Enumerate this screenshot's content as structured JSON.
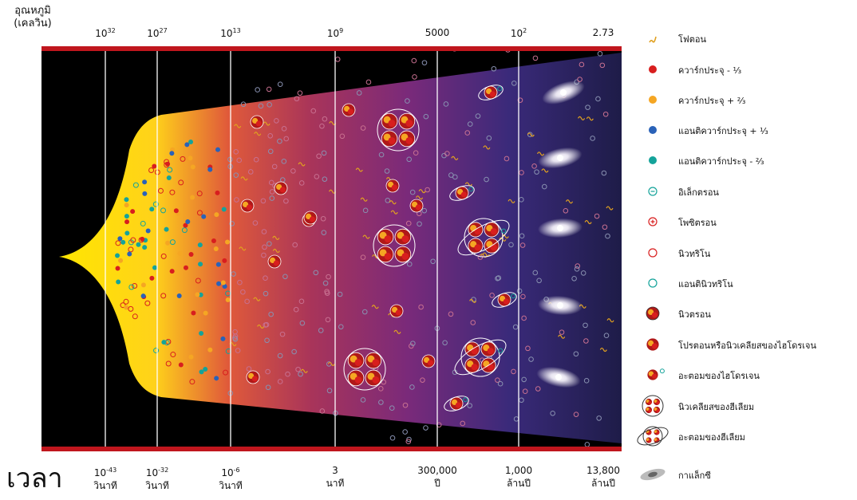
{
  "temperature": {
    "title_line1": "อุณหภูมิ",
    "title_line2": "(เคลวิน)",
    "ticks": [
      {
        "base": "10",
        "exp": "32"
      },
      {
        "base": "10",
        "exp": "27"
      },
      {
        "base": "10",
        "exp": "13"
      },
      {
        "base": "10",
        "exp": "9"
      },
      {
        "base": "5000",
        "exp": ""
      },
      {
        "base": "10",
        "exp": "2"
      },
      {
        "base": "2.73",
        "exp": ""
      }
    ]
  },
  "time": {
    "title": "เวลา",
    "ticks": [
      {
        "base": "10",
        "exp": "-43",
        "unit": "วินาที"
      },
      {
        "base": "10",
        "exp": "-32",
        "unit": "วินาที"
      },
      {
        "base": "10",
        "exp": "-6",
        "unit": "วินาที"
      },
      {
        "base": "3",
        "exp": "",
        "unit": "นาที"
      },
      {
        "base": "300,000",
        "exp": "",
        "unit": "ปี"
      },
      {
        "base": "1,000",
        "exp": "",
        "unit": "ล้านปี"
      },
      {
        "base": "13,800",
        "exp": "",
        "unit": "ล้านปี"
      }
    ]
  },
  "legend": [
    {
      "icon": "photon-icon",
      "label": "โฟตอน"
    },
    {
      "icon": "quark-minus-third-icon",
      "label": "ควาร์กประจุ - ⅓"
    },
    {
      "icon": "quark-plus-two-thirds-icon",
      "label": "ควาร์กประจุ + ⅔"
    },
    {
      "icon": "antiquark-plus-third-icon",
      "label": "แอนติควาร์กประจุ + ⅓"
    },
    {
      "icon": "antiquark-minus-two-thirds-icon",
      "label": "แอนติควาร์กประจุ - ⅔"
    },
    {
      "icon": "electron-icon",
      "label": "อิเล็กตรอน"
    },
    {
      "icon": "positron-icon",
      "label": "โพซิตรอน"
    },
    {
      "icon": "neutrino-icon",
      "label": "นิวทริโน"
    },
    {
      "icon": "antineutrino-icon",
      "label": "แอนตินิวทริโน"
    },
    {
      "icon": "neutron-icon",
      "label": "นิวตรอน"
    },
    {
      "icon": "proton-icon",
      "label": "โปรตอนหรือนิวเคลียสของไฮโดรเจน"
    },
    {
      "icon": "hydrogen-atom-icon",
      "label": "อะตอมของไฮโดรเจน"
    },
    {
      "icon": "helium-nucleus-icon",
      "label": "นิวเคลียสของฮีเลียม"
    },
    {
      "icon": "helium-atom-icon",
      "label": "อะตอมของฮีเลียม"
    },
    {
      "icon": "galaxy-icon",
      "label": "กาแล็กซี"
    }
  ],
  "colors": {
    "quark_minus": "#d81e1e",
    "quark_plus": "#f5a623",
    "antiquark_plus": "#2a62b8",
    "antiquark_minus": "#14a39a",
    "frame": "#c0161d",
    "photon": "#e0a020"
  }
}
